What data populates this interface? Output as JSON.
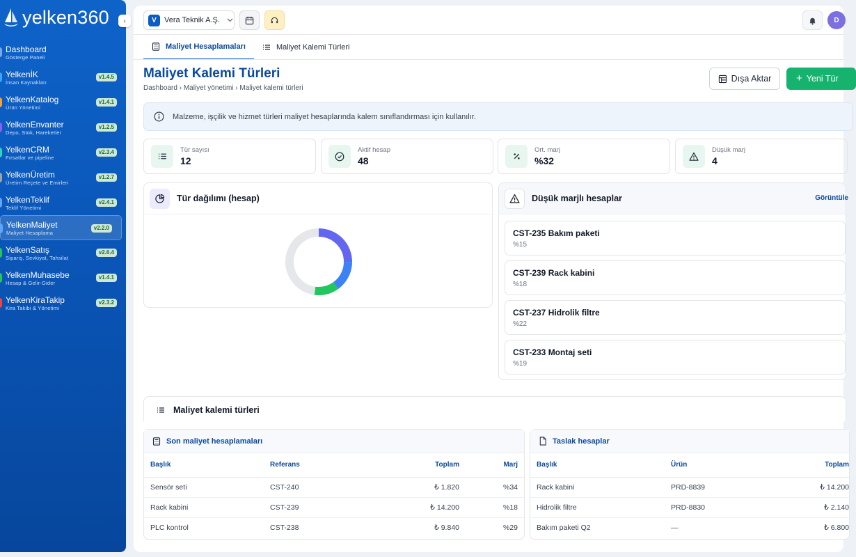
{
  "app": {
    "logo_text": "yelken360",
    "collapse_icon": "chevron-left-icon"
  },
  "sidebar": {
    "items": [
      {
        "name": "Dashboard",
        "sub": "Gösterge Paneli",
        "version": "",
        "color": "#7aa9ea"
      },
      {
        "name": "YelkenİK",
        "sub": "İnsan Kaynakları",
        "version": "v1.4.5",
        "color": "#3fa3ff"
      },
      {
        "name": "YelkenKatalog",
        "sub": "Ürün Yönetimi",
        "version": "v1.4.1",
        "color": "#f2a23c"
      },
      {
        "name": "YelkenEnvanter",
        "sub": "Depo, Stok, Hareketler",
        "version": "v1.2.5",
        "color": "#8b5cf6"
      },
      {
        "name": "YelkenCRM",
        "sub": "Fırsatlar ve pipeline",
        "version": "v2.3.4",
        "color": "#2dd4bf"
      },
      {
        "name": "YelkenÜretim",
        "sub": "Üretim Reçete ve Emirleri",
        "version": "v1.2.7",
        "color": "#9ca3af"
      },
      {
        "name": "YelkenTeklif",
        "sub": "Teklif Yönetimi",
        "version": "v2.4.1",
        "color": "#60a5fa"
      },
      {
        "name": "YelkenMaliyet",
        "sub": "Maliyet Hesaplama",
        "version": "v2.2.0",
        "color": "#60a5fa"
      },
      {
        "name": "YelkenSatış",
        "sub": "Sipariş, Sevkiyat, Tahsilat",
        "version": "v2.6.4",
        "color": "#22c55e"
      },
      {
        "name": "YelkenMuhasebe",
        "sub": "Hesap & Gelir-Gider",
        "version": "v1.4.1",
        "color": "#22c55e"
      },
      {
        "name": "YelkenKiraTakip",
        "sub": "Kira Takibi & Yönetimi",
        "version": "v2.3.2",
        "color": "#ef4444"
      }
    ]
  },
  "topbar": {
    "company_initial": "V",
    "company_name": "Vera Teknik A.Ş.",
    "avatar_initial": "D"
  },
  "tabs": [
    {
      "label": "Maliyet Hesaplamaları"
    },
    {
      "label": "Maliyet Kalemi Türleri"
    }
  ],
  "page": {
    "title": "Maliyet Kalemi Türleri",
    "breadcrumb": [
      "Dashboard",
      "Maliyet yönetimi",
      "Maliyet kalemi türleri"
    ],
    "export_label": "Dışa Aktar",
    "new_label": "Yeni Tür",
    "info_text": "Malzeme, işçilik ve hizmet türleri maliyet hesaplarında kalem sınıflandırması için kullanılır."
  },
  "kpis": [
    {
      "label": "Tür sayısı",
      "value": "12",
      "icon": "list-icon"
    },
    {
      "label": "Aktif hesap",
      "value": "48",
      "icon": "check-circle-icon"
    },
    {
      "label": "Ort. marj",
      "value": "%32",
      "icon": "percent-icon"
    },
    {
      "label": "Düşük marj",
      "value": "4",
      "icon": "warning-icon"
    }
  ],
  "distribution": {
    "title": "Tür dağılımı (hesap)",
    "donut": [
      {
        "fraction": 0.25,
        "color": "#6366f1"
      },
      {
        "fraction": 0.15,
        "color": "#3b82f6"
      },
      {
        "fraction": 0.12,
        "color": "#22c55e"
      },
      {
        "fraction": 0.48,
        "color": "#e5e7eb"
      }
    ]
  },
  "low_margin": {
    "title": "Düşük marjlı hesaplar",
    "link": "Görüntüle",
    "items": [
      {
        "title": "CST-235 Bakım paketi",
        "margin": "%15"
      },
      {
        "title": "CST-239 Rack kabini",
        "margin": "%18"
      },
      {
        "title": "CST-237 Hidrolik filtre",
        "margin": "%22"
      },
      {
        "title": "CST-233 Montaj seti",
        "margin": "%19"
      }
    ]
  },
  "types_section": {
    "title": "Maliyet kalemi türleri"
  },
  "recent": {
    "title": "Son maliyet hesaplamaları",
    "columns": [
      "Başlık",
      "Referans",
      "Toplam",
      "Marj"
    ],
    "rows": [
      [
        "Sensör seti",
        "CST-240",
        "₺ 1.820",
        "%34"
      ],
      [
        "Rack kabini",
        "CST-239",
        "₺ 14.200",
        "%18"
      ],
      [
        "PLC kontrol",
        "CST-238",
        "₺ 9.840",
        "%29"
      ]
    ]
  },
  "drafts": {
    "title": "Taslak hesaplar",
    "columns": [
      "Başlık",
      "Ürün",
      "Toplam"
    ],
    "rows": [
      [
        "Rack kabini",
        "PRD-8839",
        "₺ 14.200"
      ],
      [
        "Hidrolik filtre",
        "PRD-8830",
        "₺ 2.140"
      ],
      [
        "Bakım paketi Q2",
        "—",
        "₺ 6.800"
      ]
    ]
  }
}
